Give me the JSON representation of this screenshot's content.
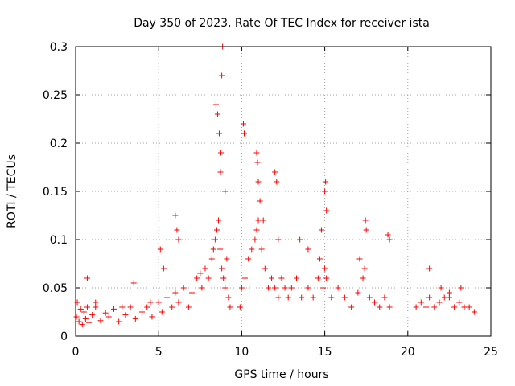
{
  "chart_data": {
    "type": "scatter",
    "title": "Day 350 of 2023, Rate Of TEC Index for receiver ista",
    "xlabel": "GPS time / hours",
    "ylabel": "ROTI / TECUs",
    "xlim": [
      0,
      25
    ],
    "ylim": [
      0,
      0.3
    ],
    "xticks": [
      0,
      5,
      10,
      15,
      20,
      25
    ],
    "xtick_labels": [
      "0",
      "5",
      "10",
      "15",
      "20",
      "25"
    ],
    "yticks": [
      0,
      0.05,
      0.1,
      0.15,
      0.2,
      0.25,
      0.3
    ],
    "ytick_labels": [
      "0",
      "0.05",
      "0.1",
      "0.15",
      "0.2",
      "0.25",
      "0.3"
    ],
    "grid": true,
    "marker": "+",
    "color": "#ff0000",
    "series": [
      {
        "name": "ROTI",
        "x": [
          0.05,
          0.1,
          0.2,
          0.3,
          0.4,
          0.5,
          0.6,
          0.7,
          0.8,
          1.0,
          1.2,
          1.5,
          1.8,
          2.0,
          2.3,
          2.6,
          3.0,
          3.3,
          3.6,
          4.0,
          4.3,
          4.6,
          5.0,
          5.2,
          5.5,
          5.8,
          6.0,
          6.2,
          6.5,
          6.8,
          7.0,
          7.3,
          7.6,
          7.8,
          8.0,
          8.2,
          8.3,
          8.4,
          8.5,
          8.6,
          8.7,
          8.8,
          8.9,
          9.0,
          9.1,
          9.2,
          9.3,
          9.9,
          10.0,
          10.2,
          10.4,
          10.6,
          10.8,
          10.9,
          11.0,
          11.2,
          11.4,
          11.6,
          11.8,
          12.0,
          12.2,
          12.4,
          12.6,
          12.8,
          13.0,
          13.3,
          13.6,
          14.0,
          14.3,
          14.6,
          14.9,
          15.0,
          15.1,
          15.4,
          15.8,
          16.2,
          16.6,
          17.0,
          17.3,
          17.4,
          17.7,
          18.0,
          18.3,
          18.6,
          18.9,
          20.5,
          20.8,
          21.1,
          21.3,
          21.6,
          21.9,
          22.2,
          22.5,
          22.8,
          23.1,
          23.4,
          23.7,
          24.0,
          0.7,
          1.2,
          2.8,
          3.5,
          4.5,
          5.1,
          5.3,
          6.0,
          6.1,
          6.2,
          7.5,
          8.45,
          8.55,
          8.65,
          8.72,
          8.75,
          8.8,
          8.85,
          9.0,
          10.1,
          10.15,
          10.9,
          10.95,
          11.0,
          11.1,
          11.3,
          12.0,
          12.1,
          12.2,
          13.5,
          14.0,
          14.7,
          14.8,
          15.0,
          15.05,
          15.1,
          17.1,
          17.45,
          17.5,
          18.8,
          18.9,
          21.3,
          22.0,
          22.5,
          23.2
        ],
        "y": [
          0.02,
          0.035,
          0.015,
          0.028,
          0.012,
          0.025,
          0.018,
          0.03,
          0.014,
          0.022,
          0.03,
          0.016,
          0.024,
          0.02,
          0.028,
          0.015,
          0.022,
          0.03,
          0.018,
          0.025,
          0.03,
          0.02,
          0.035,
          0.025,
          0.04,
          0.03,
          0.045,
          0.035,
          0.05,
          0.03,
          0.045,
          0.06,
          0.05,
          0.07,
          0.06,
          0.08,
          0.09,
          0.1,
          0.11,
          0.12,
          0.09,
          0.07,
          0.06,
          0.05,
          0.08,
          0.04,
          0.03,
          0.03,
          0.05,
          0.06,
          0.08,
          0.09,
          0.1,
          0.11,
          0.12,
          0.09,
          0.07,
          0.05,
          0.06,
          0.05,
          0.04,
          0.06,
          0.05,
          0.04,
          0.05,
          0.06,
          0.04,
          0.05,
          0.04,
          0.06,
          0.05,
          0.07,
          0.06,
          0.04,
          0.05,
          0.04,
          0.03,
          0.045,
          0.06,
          0.07,
          0.04,
          0.035,
          0.03,
          0.04,
          0.03,
          0.03,
          0.035,
          0.03,
          0.04,
          0.03,
          0.035,
          0.04,
          0.045,
          0.03,
          0.035,
          0.03,
          0.03,
          0.025,
          0.06,
          0.035,
          0.03,
          0.055,
          0.035,
          0.09,
          0.07,
          0.125,
          0.11,
          0.1,
          0.065,
          0.24,
          0.23,
          0.21,
          0.17,
          0.19,
          0.27,
          0.3,
          0.15,
          0.22,
          0.21,
          0.19,
          0.18,
          0.16,
          0.14,
          0.12,
          0.17,
          0.16,
          0.1,
          0.1,
          0.09,
          0.08,
          0.11,
          0.15,
          0.16,
          0.13,
          0.08,
          0.12,
          0.11,
          0.105,
          0.1,
          0.07,
          0.05,
          0.04,
          0.05
        ]
      }
    ]
  }
}
